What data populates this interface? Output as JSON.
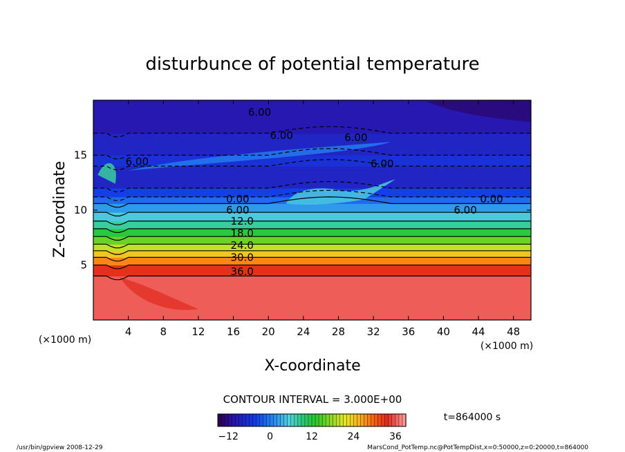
{
  "chart_data": {
    "type": "heatmap",
    "title": "disturbunce of potential temperature",
    "xlabel": "X-coordinate",
    "ylabel": "Z-coordinate",
    "x_unit_left": "(×1000 m)",
    "x_unit_right": "(×1000 m)",
    "xlim": [
      0,
      50
    ],
    "ylim": [
      0,
      20
    ],
    "x_ticks": [
      4,
      8,
      12,
      16,
      20,
      24,
      28,
      32,
      36,
      40,
      44,
      48
    ],
    "y_ticks": [
      5,
      10,
      15
    ],
    "contour_interval_text": "CONTOUR INTERVAL = 3.000E+00",
    "time_text": "t=864000 s",
    "colorbar": {
      "range": [
        -15,
        39
      ],
      "ticks": [
        -12,
        0,
        12,
        24,
        36
      ],
      "colormap": "rainbow"
    },
    "contour_labels": [
      {
        "text": "6.00",
        "x": 19,
        "z": 18.9
      },
      {
        "text": "6.00",
        "x": 21.5,
        "z": 16.8
      },
      {
        "text": "6.00",
        "x": 30,
        "z": 16.6
      },
      {
        "text": "6.00",
        "x": 5,
        "z": 14.4
      },
      {
        "text": "6.00",
        "x": 33,
        "z": 14.2
      },
      {
        "text": "0.00",
        "x": 16.5,
        "z": 11.0
      },
      {
        "text": "0.00",
        "x": 45.5,
        "z": 11.0
      },
      {
        "text": "6.00",
        "x": 16.5,
        "z": 10.0
      },
      {
        "text": "6.00",
        "x": 42.5,
        "z": 10.0
      },
      {
        "text": "12.0",
        "x": 17,
        "z": 9.0
      },
      {
        "text": "18.0",
        "x": 17,
        "z": 7.9
      },
      {
        "text": "24.0",
        "x": 17,
        "z": 6.8
      },
      {
        "text": "30.0",
        "x": 17,
        "z": 5.7
      },
      {
        "text": "36.0",
        "x": 17,
        "z": 4.4
      }
    ],
    "field_bands": [
      {
        "z0": 0,
        "z1": 4.0,
        "value": 36
      },
      {
        "z0": 4.0,
        "z1": 5.0,
        "value": 33
      },
      {
        "z0": 5.0,
        "z1": 5.7,
        "value": 28
      },
      {
        "z0": 5.7,
        "z1": 6.3,
        "value": 24
      },
      {
        "z0": 6.3,
        "z1": 6.9,
        "value": 20
      },
      {
        "z0": 6.9,
        "z1": 7.6,
        "value": 16
      },
      {
        "z0": 7.6,
        "z1": 8.3,
        "value": 12
      },
      {
        "z0": 8.3,
        "z1": 9.0,
        "value": 8
      },
      {
        "z0": 9.0,
        "z1": 9.8,
        "value": 5
      },
      {
        "z0": 9.8,
        "z1": 10.6,
        "value": 2
      },
      {
        "z0": 10.6,
        "z1": 11.2,
        "value": -1
      },
      {
        "z0": 11.2,
        "z1": 12.0,
        "value": -4
      },
      {
        "z0": 12.0,
        "z1": 14.0,
        "value": -8
      },
      {
        "z0": 14.0,
        "z1": 15.0,
        "value": -6
      },
      {
        "z0": 15.0,
        "z1": 17.0,
        "value": -8
      },
      {
        "z0": 17.0,
        "z1": 20.0,
        "value": -10
      }
    ]
  },
  "footer": {
    "left_text": "/usr/bin/gpview  2008-12-29",
    "right_text": "MarsCond_PotTemp.nc@PotTempDist,x=0:50000,z=0:20000,t=864000"
  }
}
